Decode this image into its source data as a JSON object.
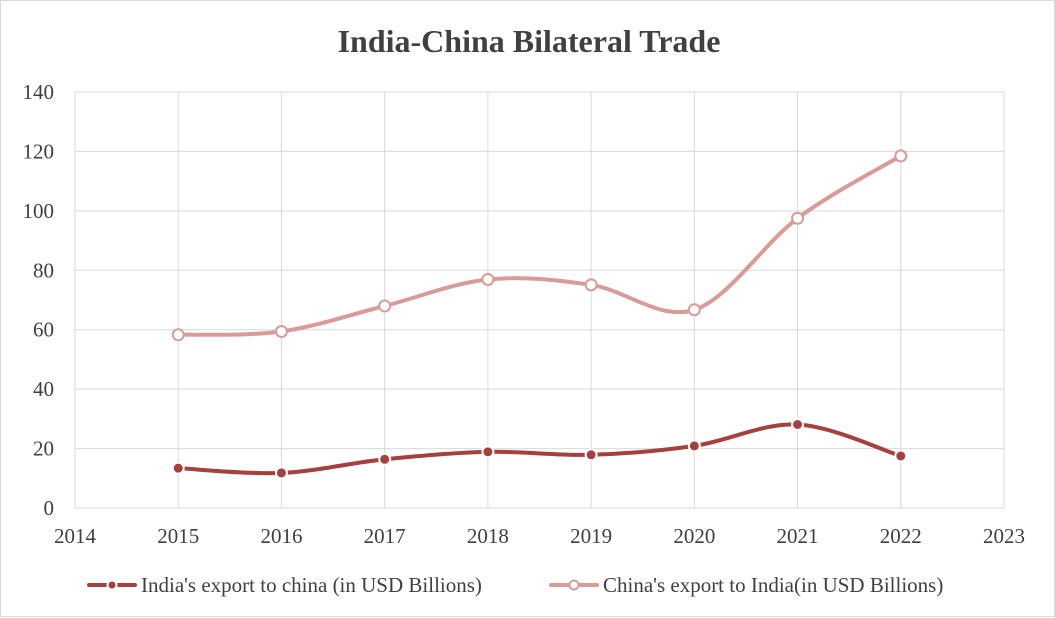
{
  "chart_data": {
    "type": "line",
    "title": "India-China Bilateral Trade",
    "xlabel": "",
    "ylabel": "",
    "xlim": [
      2014,
      2023
    ],
    "ylim": [
      0,
      140
    ],
    "x_ticks": [
      "2014",
      "2015",
      "2016",
      "2017",
      "2018",
      "2019",
      "2020",
      "2021",
      "2022",
      "2023"
    ],
    "y_ticks": [
      "0",
      "20",
      "40",
      "60",
      "80",
      "100",
      "120",
      "140"
    ],
    "grid": true,
    "smooth": true,
    "legend_position": "bottom",
    "series": [
      {
        "name": "India's export to china (in USD Billions)",
        "color": "#a5403f",
        "marker_fill": "#a5403f",
        "x": [
          2015,
          2016,
          2017,
          2018,
          2019,
          2020,
          2021,
          2022
        ],
        "values": [
          13.4,
          11.8,
          16.4,
          18.9,
          17.9,
          20.9,
          28.1,
          17.5
        ]
      },
      {
        "name": "China's export to India(in USD Billions)",
        "color": "#d99a98",
        "marker_fill": "#ffffff",
        "x": [
          2015,
          2016,
          2017,
          2018,
          2019,
          2020,
          2021,
          2022
        ],
        "values": [
          58.3,
          59.4,
          68.0,
          76.9,
          75.1,
          66.7,
          97.5,
          118.5
        ]
      }
    ]
  }
}
